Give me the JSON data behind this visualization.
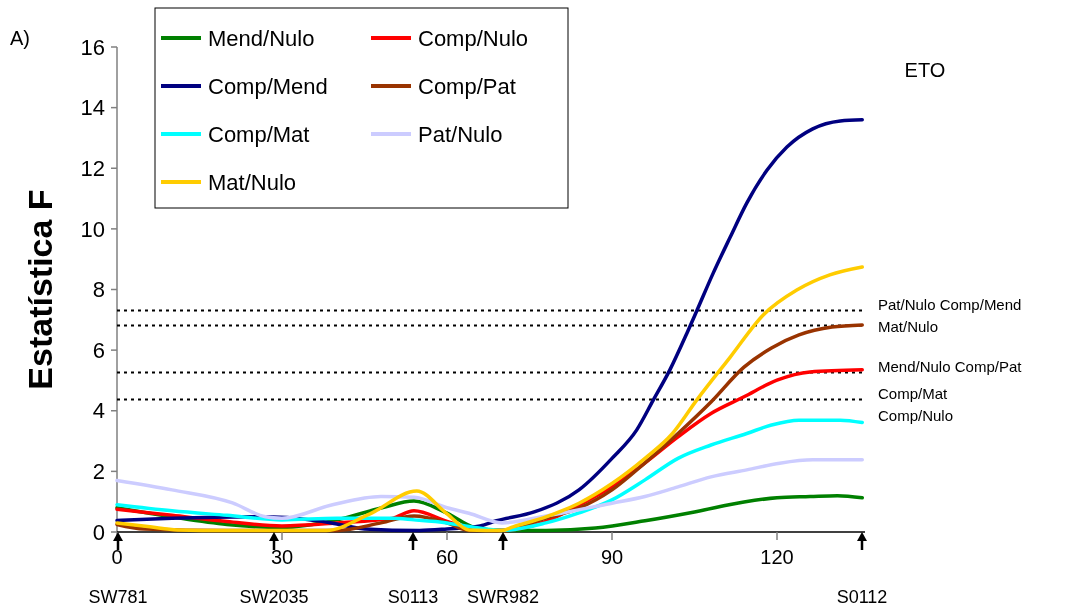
{
  "chart_data": {
    "type": "line",
    "ylabel": "Estatística F",
    "xlim": [
      0,
      136
    ],
    "xticks": [
      0,
      30,
      60,
      90,
      120
    ],
    "ylim": [
      0,
      16
    ],
    "yticks": [
      0,
      2,
      4,
      6,
      8,
      10,
      12,
      14,
      16
    ],
    "grid": false,
    "legend": "top left",
    "marker": "none",
    "line_style": "solid",
    "series": [
      {
        "name": "Mend/Nulo",
        "color": "#008000",
        "x": [
          0,
          10,
          20,
          30,
          40,
          48,
          54,
          60,
          65,
          70,
          78,
          87,
          96,
          105,
          114,
          120,
          126,
          131,
          135.5
        ],
        "values": [
          0.8,
          0.5,
          0.25,
          0.15,
          0.4,
          0.79,
          1.02,
          0.62,
          0.15,
          0.05,
          0.05,
          0.13,
          0.37,
          0.66,
          0.99,
          1.13,
          1.17,
          1.2,
          1.13
        ]
      },
      {
        "name": "Comp/Nulo",
        "color": "#ff0000",
        "x": [
          0,
          10,
          20,
          30,
          40,
          50,
          54,
          60,
          65,
          70,
          78,
          84,
          90,
          96,
          102,
          108,
          114,
          120,
          126,
          135.5
        ],
        "values": [
          0.75,
          0.55,
          0.35,
          0.2,
          0.3,
          0.45,
          0.7,
          0.35,
          0.1,
          0.05,
          0.35,
          0.89,
          1.49,
          2.28,
          3.14,
          3.91,
          4.46,
          5.01,
          5.28,
          5.35
        ]
      },
      {
        "name": "Comp/Mend",
        "color": "#000080",
        "x": [
          0,
          10,
          27,
          39,
          45,
          55,
          60,
          66,
          69,
          76,
          84,
          90,
          94.5,
          97.5,
          100.5,
          103.6,
          105.4,
          108.4,
          111.5,
          114.5,
          118.2,
          121.8,
          126.5,
          131.5,
          135.5
        ],
        "values": [
          0.38,
          0.45,
          0.5,
          0.3,
          0.1,
          0.05,
          0.1,
          0.2,
          0.37,
          0.67,
          1.39,
          2.43,
          3.37,
          4.35,
          5.34,
          6.55,
          7.29,
          8.54,
          9.73,
          10.85,
          11.94,
          12.7,
          13.3,
          13.56,
          13.6
        ]
      },
      {
        "name": "Comp/Pat",
        "color": "#993300",
        "x": [
          0,
          5,
          20,
          40,
          48,
          54,
          60,
          64,
          70,
          78,
          84,
          90,
          96,
          102,
          108,
          114,
          119,
          124,
          130,
          135.5
        ],
        "values": [
          0.25,
          0.1,
          0.05,
          0.05,
          0.3,
          0.53,
          0.3,
          0.05,
          0.05,
          0.46,
          0.79,
          1.39,
          2.28,
          3.25,
          4.29,
          5.44,
          6.07,
          6.5,
          6.76,
          6.83
        ]
      },
      {
        "name": "Comp/Mat",
        "color": "#00ffff",
        "x": [
          0,
          10,
          20,
          30,
          40,
          50,
          54,
          60,
          65,
          70,
          78,
          84,
          90,
          96,
          102,
          108,
          114.5,
          119,
          124,
          131.5,
          135.5
        ],
        "values": [
          0.9,
          0.7,
          0.55,
          0.4,
          0.45,
          0.45,
          0.4,
          0.3,
          0.15,
          0.05,
          0.3,
          0.63,
          1.06,
          1.72,
          2.43,
          2.87,
          3.25,
          3.53,
          3.69,
          3.69,
          3.61
        ]
      },
      {
        "name": "Pat/Nulo",
        "color": "#ccccff",
        "x": [
          0,
          10,
          21,
          27,
          30,
          39,
          48,
          54,
          60,
          64,
          70,
          78,
          90,
          96,
          102,
          108,
          114.5,
          120.5,
          126.5,
          135.5
        ],
        "values": [
          1.7,
          1.39,
          0.96,
          0.5,
          0.45,
          0.89,
          1.17,
          1.15,
          0.8,
          0.62,
          0.3,
          0.53,
          0.95,
          1.17,
          1.49,
          1.82,
          2.05,
          2.27,
          2.38,
          2.38
        ]
      },
      {
        "name": "Mat/Nulo",
        "color": "#ffcc00",
        "x": [
          0,
          6,
          11,
          20,
          30,
          38,
          46,
          54.5,
          60,
          64,
          70,
          72,
          78,
          84,
          90,
          96,
          101,
          105.4,
          111.5,
          117.5,
          123.6,
          129.6,
          135.5
        ],
        "values": [
          0.3,
          0.17,
          0.07,
          0.05,
          0.05,
          0.05,
          0.6,
          1.35,
          0.6,
          0.07,
          0.05,
          0.17,
          0.5,
          0.95,
          1.6,
          2.43,
          3.25,
          4.35,
          5.77,
          7.16,
          7.98,
          8.48,
          8.74
        ]
      }
    ],
    "ref_lines": [
      {
        "axis": "y",
        "value": 7.31,
        "label": "Pat/Nulo Comp/Mend",
        "line_style": "dotted",
        "color": "#000000"
      },
      {
        "axis": "y",
        "value": 6.81,
        "label": "Mat/Nulo",
        "line_style": "dotted",
        "color": "#000000"
      },
      {
        "axis": "y",
        "value": 5.26,
        "label": "Mend/Nulo Comp/Pat",
        "line_style": "dotted",
        "color": "#000000"
      },
      {
        "axis": "y",
        "value": 4.37,
        "label": "Comp/Mat",
        "line_style": "dotted",
        "color": "#000000"
      }
    ],
    "annotations": [
      "A)",
      "ETO",
      "Comp/Nulo",
      "SW781",
      "SW2035",
      "S0113",
      "SWR982",
      "S0112"
    ]
  }
}
